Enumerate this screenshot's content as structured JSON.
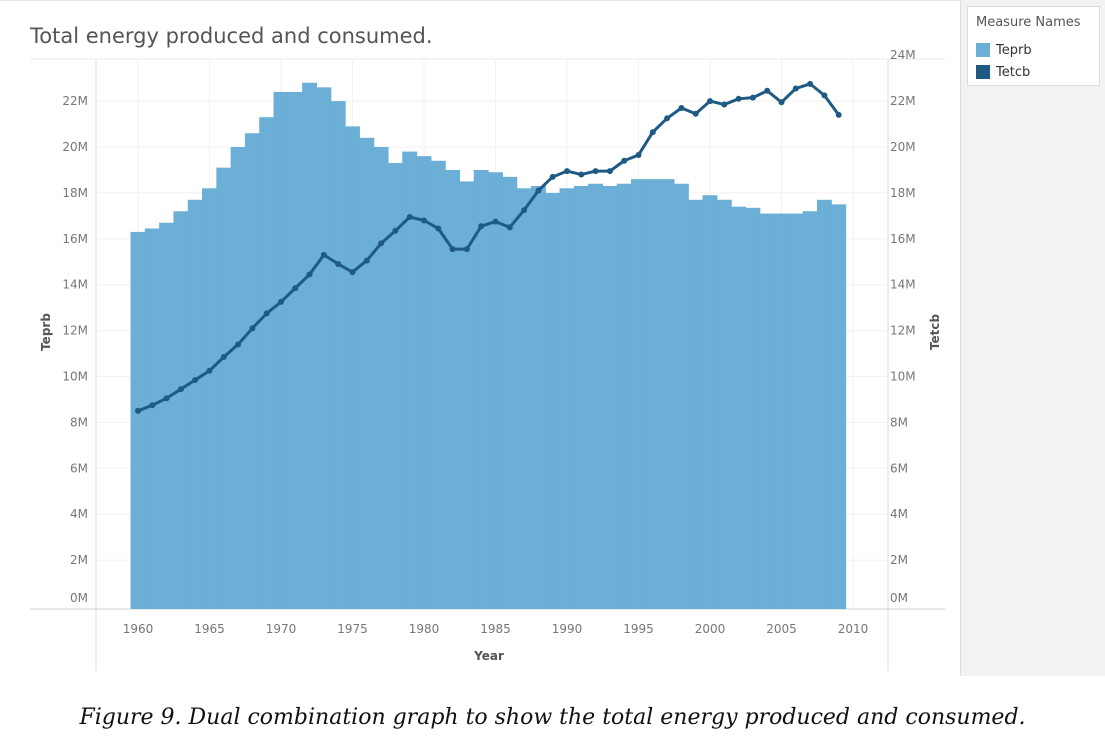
{
  "caption": "Figure 9. Dual combination graph to show the total energy produced and consumed.",
  "legend": {
    "title": "Measure Names",
    "items": [
      {
        "label": "Teprb",
        "color": "#6baed6"
      },
      {
        "label": "Tetcb",
        "color": "#1f5a85"
      }
    ]
  },
  "chart_data": {
    "type": "bar+line",
    "title": "Total energy produced and consumed.",
    "xlabel": "Year",
    "ylabel_left": "Teprb",
    "ylabel_right": "Tetcb",
    "x_ticks": [
      "1960",
      "1965",
      "1970",
      "1975",
      "1980",
      "1985",
      "1990",
      "1995",
      "2000",
      "2005",
      "2010"
    ],
    "y_left_ticks": [
      "0M",
      "2M",
      "4M",
      "6M",
      "8M",
      "10M",
      "12M",
      "14M",
      "16M",
      "18M",
      "20M",
      "22M"
    ],
    "y_right_ticks": [
      "0M",
      "2M",
      "4M",
      "6M",
      "8M",
      "10M",
      "12M",
      "14M",
      "16M",
      "18M",
      "20M",
      "22M",
      "24M"
    ],
    "ylim_left": [
      0,
      23.5
    ],
    "ylim_right": [
      0,
      23.5
    ],
    "x": [
      1960,
      1961,
      1962,
      1963,
      1964,
      1965,
      1966,
      1967,
      1968,
      1969,
      1970,
      1971,
      1972,
      1973,
      1974,
      1975,
      1976,
      1977,
      1978,
      1979,
      1980,
      1981,
      1982,
      1983,
      1984,
      1985,
      1986,
      1987,
      1988,
      1989,
      1990,
      1991,
      1992,
      1993,
      1994,
      1995,
      1996,
      1997,
      1998,
      1999,
      2000,
      2001,
      2002,
      2003,
      2004,
      2005,
      2006,
      2007,
      2008,
      2009
    ],
    "series": [
      {
        "name": "Teprb",
        "kind": "bar",
        "color": "#6baed6",
        "values": [
          16.3,
          16.45,
          16.7,
          17.2,
          17.7,
          18.2,
          19.1,
          20.0,
          20.6,
          21.3,
          22.4,
          22.4,
          22.8,
          22.6,
          22.0,
          20.9,
          20.4,
          20.0,
          19.3,
          19.8,
          19.6,
          19.4,
          19.0,
          18.5,
          19.0,
          18.9,
          18.7,
          18.2,
          18.3,
          18.0,
          18.2,
          18.3,
          18.4,
          18.3,
          18.4,
          18.6,
          18.6,
          18.6,
          18.4,
          17.7,
          17.9,
          17.7,
          17.4,
          17.35,
          17.1,
          17.1,
          17.1,
          17.2,
          17.7,
          17.5
        ]
      },
      {
        "name": "Tetcb",
        "kind": "line",
        "color": "#1f5a85",
        "values": [
          8.5,
          8.75,
          9.05,
          9.45,
          9.85,
          10.25,
          10.85,
          11.4,
          12.1,
          12.75,
          13.25,
          13.85,
          14.45,
          15.3,
          14.9,
          14.55,
          15.05,
          15.8,
          16.35,
          16.95,
          16.8,
          16.45,
          15.55,
          15.55,
          16.55,
          16.75,
          16.5,
          17.25,
          18.1,
          18.7,
          18.95,
          18.8,
          18.95,
          18.95,
          19.4,
          19.65,
          20.65,
          21.25,
          21.7,
          21.45,
          22.0,
          21.85,
          22.1,
          22.15,
          22.45,
          21.95,
          22.55,
          22.75,
          22.25,
          21.4
        ]
      }
    ],
    "grid": true,
    "legend_position": "right"
  }
}
